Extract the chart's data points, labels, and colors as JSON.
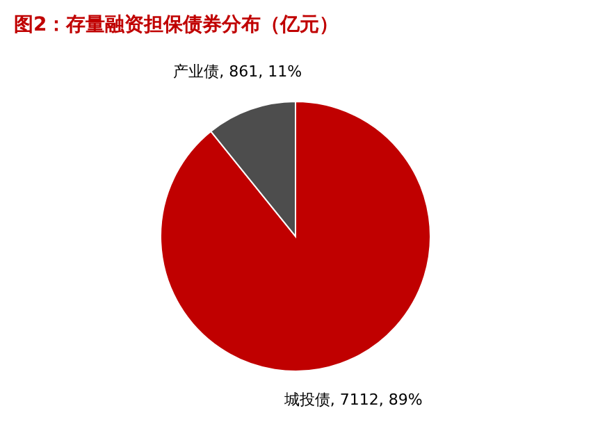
{
  "chart_data": {
    "type": "pie",
    "title": "图2：存量融资担保债券分布（亿元）",
    "categories": [
      "城投债",
      "产业债"
    ],
    "values": [
      7112,
      861
    ],
    "colors": [
      "#c00000",
      "#4d4d4d"
    ],
    "value_labels": [
      "7112, 89%",
      "861, 11%"
    ],
    "legend": false
  }
}
